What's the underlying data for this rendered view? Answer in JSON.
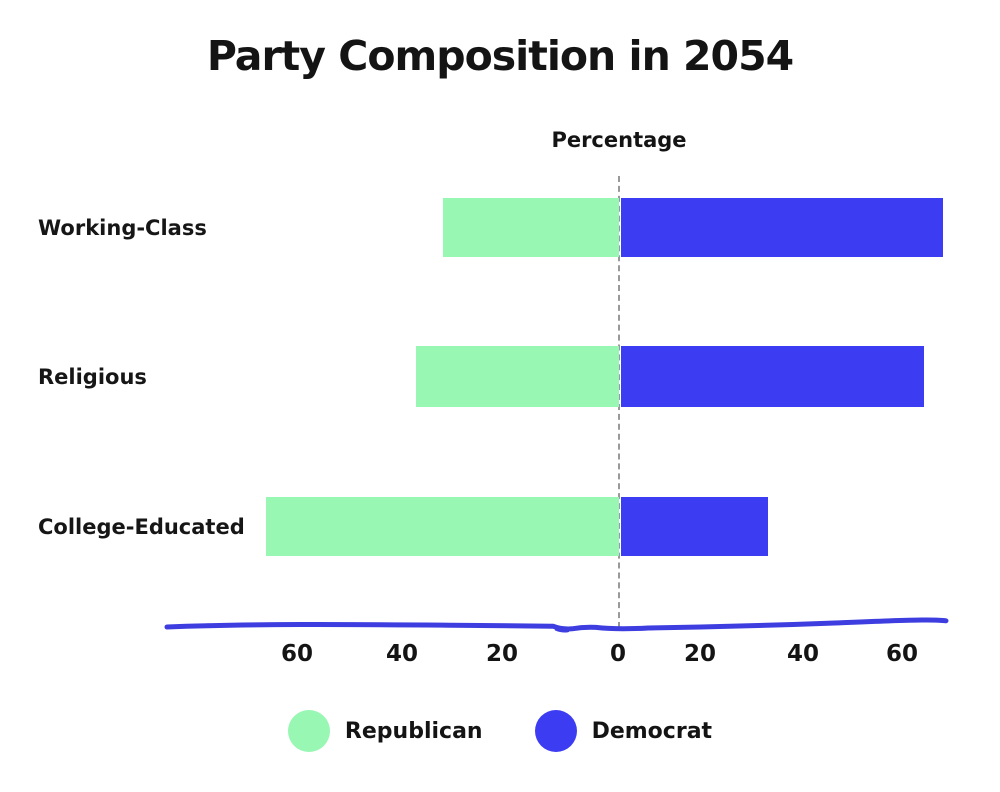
{
  "title": "Party Composition in 2054",
  "chart_data": {
    "type": "bar",
    "variant": "diverging-horizontal",
    "title": "Party Composition in 2054",
    "xlabel": "Percentage",
    "categories": [
      "Working-Class",
      "Religious",
      "College-Educated"
    ],
    "series": [
      {
        "name": "Republican",
        "side": "left",
        "color": "#97f7b3",
        "values": [
          33,
          38,
          66
        ]
      },
      {
        "name": "Democrat",
        "side": "right",
        "color": "#3c3cf2",
        "values": [
          68,
          64,
          31
        ]
      }
    ],
    "x_ticks": [
      "60",
      "40",
      "20",
      "0",
      "20",
      "40",
      "60"
    ],
    "xlim": [
      -75,
      70
    ],
    "grid": false,
    "legend_position": "bottom"
  },
  "legend": {
    "items": [
      {
        "label": "Republican",
        "color": "#97f7b3"
      },
      {
        "label": "Democrat",
        "color": "#3c3cf2"
      }
    ]
  },
  "colors": {
    "republican": "#97f7b3",
    "democrat": "#3c3cf2",
    "axis_line": "#3e3ee0",
    "center_line": "#999999",
    "text": "#161616",
    "background": "#ffffff"
  }
}
